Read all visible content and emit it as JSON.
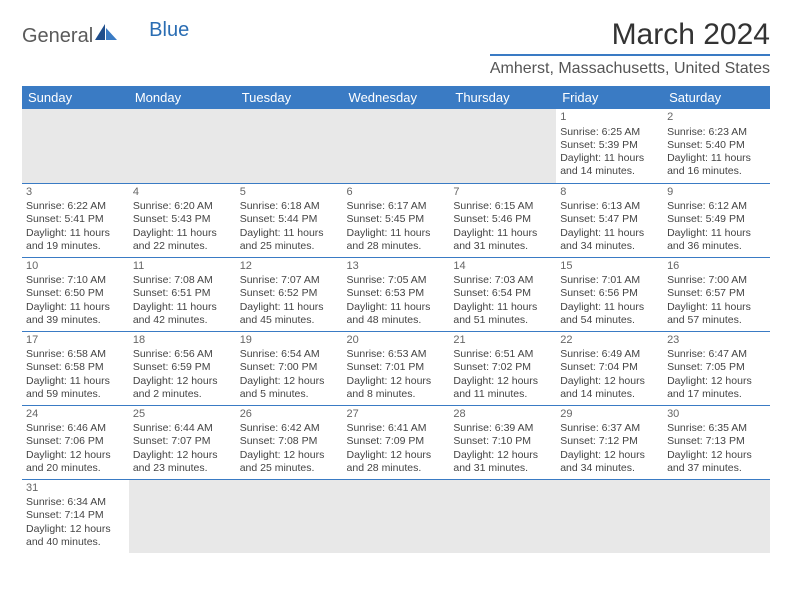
{
  "logo": {
    "general": "General",
    "blue": "Blue"
  },
  "title": "March 2024",
  "location": "Amherst, Massachusetts, United States",
  "headers": [
    "Sunday",
    "Monday",
    "Tuesday",
    "Wednesday",
    "Thursday",
    "Friday",
    "Saturday"
  ],
  "colors": {
    "accent": "#3a7bc4",
    "header_bg": "#3a7bc4",
    "header_text": "#ffffff",
    "empty_bg": "#e8e8e8",
    "text": "#444444",
    "title_text": "#333333"
  },
  "weeks": [
    [
      null,
      null,
      null,
      null,
      null,
      {
        "d": "1",
        "sr": "Sunrise: 6:25 AM",
        "ss": "Sunset: 5:39 PM",
        "dl1": "Daylight: 11 hours",
        "dl2": "and 14 minutes."
      },
      {
        "d": "2",
        "sr": "Sunrise: 6:23 AM",
        "ss": "Sunset: 5:40 PM",
        "dl1": "Daylight: 11 hours",
        "dl2": "and 16 minutes."
      }
    ],
    [
      {
        "d": "3",
        "sr": "Sunrise: 6:22 AM",
        "ss": "Sunset: 5:41 PM",
        "dl1": "Daylight: 11 hours",
        "dl2": "and 19 minutes."
      },
      {
        "d": "4",
        "sr": "Sunrise: 6:20 AM",
        "ss": "Sunset: 5:43 PM",
        "dl1": "Daylight: 11 hours",
        "dl2": "and 22 minutes."
      },
      {
        "d": "5",
        "sr": "Sunrise: 6:18 AM",
        "ss": "Sunset: 5:44 PM",
        "dl1": "Daylight: 11 hours",
        "dl2": "and 25 minutes."
      },
      {
        "d": "6",
        "sr": "Sunrise: 6:17 AM",
        "ss": "Sunset: 5:45 PM",
        "dl1": "Daylight: 11 hours",
        "dl2": "and 28 minutes."
      },
      {
        "d": "7",
        "sr": "Sunrise: 6:15 AM",
        "ss": "Sunset: 5:46 PM",
        "dl1": "Daylight: 11 hours",
        "dl2": "and 31 minutes."
      },
      {
        "d": "8",
        "sr": "Sunrise: 6:13 AM",
        "ss": "Sunset: 5:47 PM",
        "dl1": "Daylight: 11 hours",
        "dl2": "and 34 minutes."
      },
      {
        "d": "9",
        "sr": "Sunrise: 6:12 AM",
        "ss": "Sunset: 5:49 PM",
        "dl1": "Daylight: 11 hours",
        "dl2": "and 36 minutes."
      }
    ],
    [
      {
        "d": "10",
        "sr": "Sunrise: 7:10 AM",
        "ss": "Sunset: 6:50 PM",
        "dl1": "Daylight: 11 hours",
        "dl2": "and 39 minutes."
      },
      {
        "d": "11",
        "sr": "Sunrise: 7:08 AM",
        "ss": "Sunset: 6:51 PM",
        "dl1": "Daylight: 11 hours",
        "dl2": "and 42 minutes."
      },
      {
        "d": "12",
        "sr": "Sunrise: 7:07 AM",
        "ss": "Sunset: 6:52 PM",
        "dl1": "Daylight: 11 hours",
        "dl2": "and 45 minutes."
      },
      {
        "d": "13",
        "sr": "Sunrise: 7:05 AM",
        "ss": "Sunset: 6:53 PM",
        "dl1": "Daylight: 11 hours",
        "dl2": "and 48 minutes."
      },
      {
        "d": "14",
        "sr": "Sunrise: 7:03 AM",
        "ss": "Sunset: 6:54 PM",
        "dl1": "Daylight: 11 hours",
        "dl2": "and 51 minutes."
      },
      {
        "d": "15",
        "sr": "Sunrise: 7:01 AM",
        "ss": "Sunset: 6:56 PM",
        "dl1": "Daylight: 11 hours",
        "dl2": "and 54 minutes."
      },
      {
        "d": "16",
        "sr": "Sunrise: 7:00 AM",
        "ss": "Sunset: 6:57 PM",
        "dl1": "Daylight: 11 hours",
        "dl2": "and 57 minutes."
      }
    ],
    [
      {
        "d": "17",
        "sr": "Sunrise: 6:58 AM",
        "ss": "Sunset: 6:58 PM",
        "dl1": "Daylight: 11 hours",
        "dl2": "and 59 minutes."
      },
      {
        "d": "18",
        "sr": "Sunrise: 6:56 AM",
        "ss": "Sunset: 6:59 PM",
        "dl1": "Daylight: 12 hours",
        "dl2": "and 2 minutes."
      },
      {
        "d": "19",
        "sr": "Sunrise: 6:54 AM",
        "ss": "Sunset: 7:00 PM",
        "dl1": "Daylight: 12 hours",
        "dl2": "and 5 minutes."
      },
      {
        "d": "20",
        "sr": "Sunrise: 6:53 AM",
        "ss": "Sunset: 7:01 PM",
        "dl1": "Daylight: 12 hours",
        "dl2": "and 8 minutes."
      },
      {
        "d": "21",
        "sr": "Sunrise: 6:51 AM",
        "ss": "Sunset: 7:02 PM",
        "dl1": "Daylight: 12 hours",
        "dl2": "and 11 minutes."
      },
      {
        "d": "22",
        "sr": "Sunrise: 6:49 AM",
        "ss": "Sunset: 7:04 PM",
        "dl1": "Daylight: 12 hours",
        "dl2": "and 14 minutes."
      },
      {
        "d": "23",
        "sr": "Sunrise: 6:47 AM",
        "ss": "Sunset: 7:05 PM",
        "dl1": "Daylight: 12 hours",
        "dl2": "and 17 minutes."
      }
    ],
    [
      {
        "d": "24",
        "sr": "Sunrise: 6:46 AM",
        "ss": "Sunset: 7:06 PM",
        "dl1": "Daylight: 12 hours",
        "dl2": "and 20 minutes."
      },
      {
        "d": "25",
        "sr": "Sunrise: 6:44 AM",
        "ss": "Sunset: 7:07 PM",
        "dl1": "Daylight: 12 hours",
        "dl2": "and 23 minutes."
      },
      {
        "d": "26",
        "sr": "Sunrise: 6:42 AM",
        "ss": "Sunset: 7:08 PM",
        "dl1": "Daylight: 12 hours",
        "dl2": "and 25 minutes."
      },
      {
        "d": "27",
        "sr": "Sunrise: 6:41 AM",
        "ss": "Sunset: 7:09 PM",
        "dl1": "Daylight: 12 hours",
        "dl2": "and 28 minutes."
      },
      {
        "d": "28",
        "sr": "Sunrise: 6:39 AM",
        "ss": "Sunset: 7:10 PM",
        "dl1": "Daylight: 12 hours",
        "dl2": "and 31 minutes."
      },
      {
        "d": "29",
        "sr": "Sunrise: 6:37 AM",
        "ss": "Sunset: 7:12 PM",
        "dl1": "Daylight: 12 hours",
        "dl2": "and 34 minutes."
      },
      {
        "d": "30",
        "sr": "Sunrise: 6:35 AM",
        "ss": "Sunset: 7:13 PM",
        "dl1": "Daylight: 12 hours",
        "dl2": "and 37 minutes."
      }
    ],
    [
      {
        "d": "31",
        "sr": "Sunrise: 6:34 AM",
        "ss": "Sunset: 7:14 PM",
        "dl1": "Daylight: 12 hours",
        "dl2": "and 40 minutes."
      },
      null,
      null,
      null,
      null,
      null,
      null
    ]
  ]
}
